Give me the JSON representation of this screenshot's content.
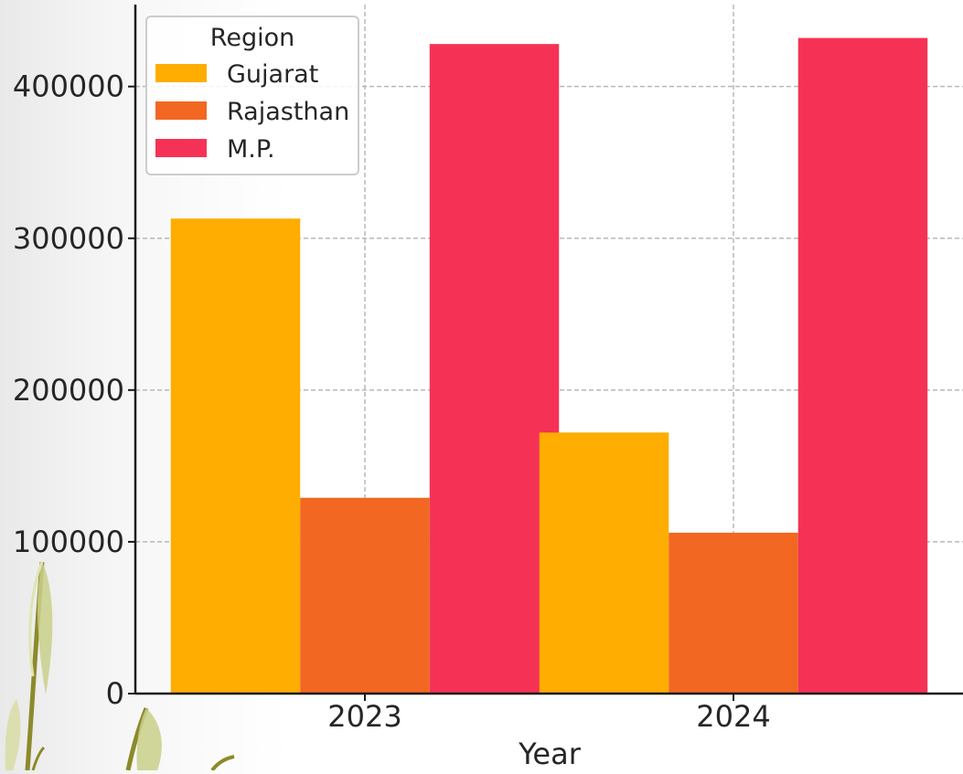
{
  "chart_data": {
    "type": "bar",
    "title": "",
    "xlabel": "Year",
    "ylabel": "",
    "categories": [
      "2023",
      "2024"
    ],
    "series": [
      {
        "name": "Gujarat",
        "color": "#ffad00",
        "values": [
          313000,
          172000
        ]
      },
      {
        "name": "Rajasthan",
        "color": "#f26722",
        "values": [
          129000,
          106000
        ]
      },
      {
        "name": "M.P.",
        "color": "#f53255",
        "values": [
          428000,
          432000
        ]
      }
    ],
    "ylim": [
      0,
      454000
    ],
    "yticks": [
      0,
      100000,
      200000,
      300000,
      400000
    ],
    "ytick_labels": [
      "0",
      "100000",
      "200000",
      "300000",
      "400000"
    ],
    "grid": true,
    "legend": {
      "title": "Region",
      "position": "top-left"
    }
  },
  "decoration": {
    "icon": "wheat-stalks-icon"
  }
}
